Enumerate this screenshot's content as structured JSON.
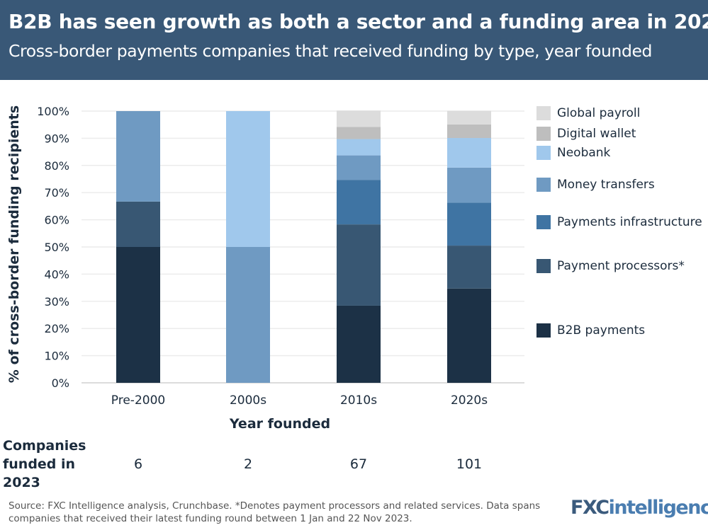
{
  "header": {
    "title": "B2B has seen growth as both a sector and a funding area in 2023",
    "subtitle": "Cross-border payments companies that received funding by type, year founded"
  },
  "chart_data": {
    "type": "bar",
    "stacked": true,
    "title": "B2B has seen growth as both a sector and a funding area in 2023",
    "subtitle": "Cross-border payments companies that received funding by type, year founded",
    "xlabel": "Year founded",
    "ylabel": "% of  cross-border funding recipients",
    "ylim": [
      0,
      100
    ],
    "yticks": [
      "0%",
      "10%",
      "20%",
      "30%",
      "40%",
      "50%",
      "60%",
      "70%",
      "80%",
      "90%",
      "100%"
    ],
    "grid": true,
    "legend_position": "right",
    "categories": [
      "Pre-2000",
      "2000s",
      "2010s",
      "2020s"
    ],
    "series": [
      {
        "name": "B2B payments",
        "color": "#1c3146",
        "values": [
          50,
          0,
          28.4,
          34.7
        ]
      },
      {
        "name": "Payment processors*",
        "color": "#385773",
        "values": [
          16.7,
          0,
          29.9,
          15.8
        ]
      },
      {
        "name": "Payments infrastructure",
        "color": "#3f74a3",
        "values": [
          0,
          0,
          16.4,
          15.8
        ]
      },
      {
        "name": "Money transfers",
        "color": "#6f9ac2",
        "values": [
          33.3,
          50,
          9.0,
          12.9
        ]
      },
      {
        "name": "Neobank",
        "color": "#a0c8ec",
        "values": [
          0,
          50,
          6.0,
          10.9
        ]
      },
      {
        "name": "Digital wallet",
        "color": "#bebebe",
        "values": [
          0,
          0,
          4.5,
          5.0
        ]
      },
      {
        "name": "Global payroll",
        "color": "#dcdcdc",
        "values": [
          0,
          0,
          6.0,
          5.0
        ]
      }
    ]
  },
  "companies": {
    "label": "Companies funded in 2023",
    "counts": [
      "6",
      "2",
      "67",
      "101"
    ]
  },
  "footer": {
    "source": "Source: FXC Intelligence analysis, Crunchbase. *Denotes payment processors and related services. Data spans companies that received their latest funding round between 1 Jan and 22 Nov 2023.",
    "logo": "FXCintelligence"
  }
}
